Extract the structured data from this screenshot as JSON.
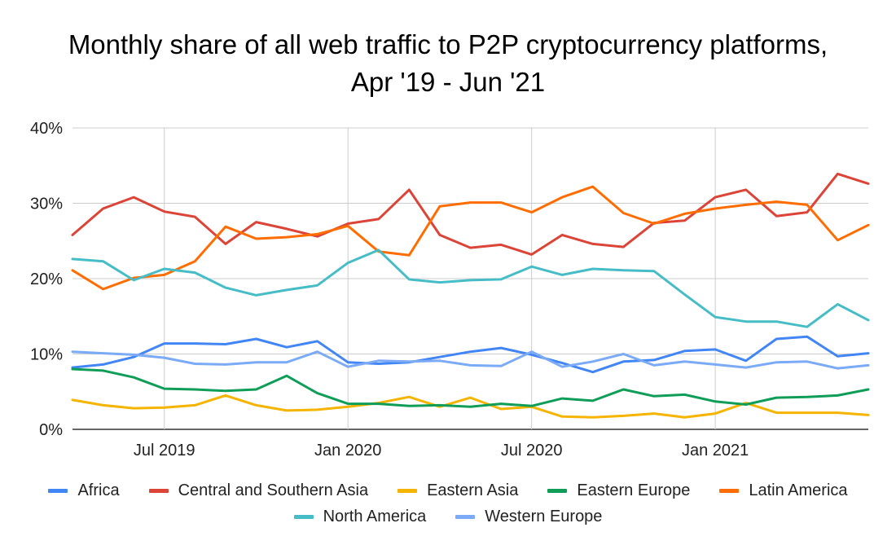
{
  "chart_data": {
    "type": "line",
    "title": "Monthly share of all web traffic to P2P cryptocurrency platforms,",
    "subtitle": "Apr '19 - Jun '21",
    "xlabel": "",
    "ylabel": "",
    "x": [
      "2019-04",
      "2019-05",
      "2019-06",
      "2019-07",
      "2019-08",
      "2019-09",
      "2019-10",
      "2019-11",
      "2019-12",
      "2020-01",
      "2020-02",
      "2020-03",
      "2020-04",
      "2020-05",
      "2020-06",
      "2020-07",
      "2020-08",
      "2020-09",
      "2020-10",
      "2020-11",
      "2020-12",
      "2021-01",
      "2021-02",
      "2021-03",
      "2021-04",
      "2021-05",
      "2021-06"
    ],
    "x_ticks": [
      {
        "x": "2019-07",
        "label": "Jul 2019"
      },
      {
        "x": "2020-01",
        "label": "Jan 2020"
      },
      {
        "x": "2020-07",
        "label": "Jul 2020"
      },
      {
        "x": "2021-01",
        "label": "Jan 2021"
      }
    ],
    "y_ticks": [
      {
        "value": 0,
        "label": "0%"
      },
      {
        "value": 10,
        "label": "10%"
      },
      {
        "value": 20,
        "label": "20%"
      },
      {
        "value": 30,
        "label": "30%"
      },
      {
        "value": 40,
        "label": "40%"
      }
    ],
    "ylim": [
      0,
      40
    ],
    "grid": true,
    "legend_position": "bottom",
    "series": [
      {
        "name": "Africa",
        "color": "#4285F4",
        "values": [
          8.2,
          8.6,
          9.6,
          11.4,
          11.4,
          11.3,
          12.0,
          10.9,
          11.7,
          8.9,
          8.7,
          8.9,
          9.6,
          10.3,
          10.8,
          9.9,
          8.8,
          7.6,
          9.0,
          9.2,
          10.4,
          10.6,
          9.1,
          12.0,
          12.3,
          9.7,
          10.1
        ]
      },
      {
        "name": "Central and Southern Asia",
        "color": "#DB4437",
        "values": [
          25.8,
          29.3,
          30.8,
          28.9,
          28.2,
          24.6,
          27.5,
          26.6,
          25.6,
          27.3,
          27.9,
          31.8,
          25.8,
          24.1,
          24.5,
          23.2,
          25.8,
          24.6,
          24.2,
          27.4,
          27.7,
          30.8,
          31.8,
          28.3,
          28.8,
          33.9,
          32.6
        ]
      },
      {
        "name": "Eastern Asia",
        "color": "#F4B400",
        "values": [
          3.9,
          3.2,
          2.8,
          2.9,
          3.2,
          4.5,
          3.2,
          2.5,
          2.6,
          3.0,
          3.5,
          4.3,
          3.0,
          4.2,
          2.7,
          3.0,
          1.7,
          1.6,
          1.8,
          2.1,
          1.6,
          2.1,
          3.5,
          2.2,
          2.2,
          2.2,
          1.9
        ]
      },
      {
        "name": "Eastern Europe",
        "color": "#0F9D58",
        "values": [
          8.0,
          7.8,
          6.9,
          5.4,
          5.3,
          5.1,
          5.3,
          7.1,
          4.8,
          3.4,
          3.4,
          3.1,
          3.2,
          3.0,
          3.4,
          3.1,
          4.1,
          3.8,
          5.3,
          4.4,
          4.6,
          3.7,
          3.3,
          4.2,
          4.3,
          4.5,
          5.3
        ]
      },
      {
        "name": "Latin America",
        "color": "#FF6D01",
        "values": [
          21.1,
          18.6,
          20.1,
          20.5,
          22.3,
          26.9,
          25.3,
          25.5,
          25.9,
          27.0,
          23.6,
          23.1,
          29.6,
          30.1,
          30.1,
          28.8,
          30.8,
          32.2,
          28.7,
          27.3,
          28.6,
          29.3,
          29.8,
          30.2,
          29.8,
          25.1,
          27.1
        ]
      },
      {
        "name": "North America",
        "color": "#46BDC6",
        "values": [
          22.6,
          22.3,
          19.8,
          21.3,
          20.8,
          18.8,
          17.8,
          18.5,
          19.1,
          22.1,
          23.8,
          19.9,
          19.5,
          19.8,
          19.9,
          21.6,
          20.5,
          21.3,
          21.1,
          21.0,
          17.9,
          14.9,
          14.3,
          14.3,
          13.6,
          16.6,
          14.5
        ]
      },
      {
        "name": "Western Europe",
        "color": "#7BAAF7",
        "values": [
          10.3,
          10.1,
          9.9,
          9.5,
          8.7,
          8.6,
          8.9,
          8.9,
          10.3,
          8.3,
          9.1,
          9.0,
          9.1,
          8.5,
          8.4,
          10.3,
          8.3,
          9.0,
          10.0,
          8.5,
          9.0,
          8.6,
          8.2,
          8.9,
          9.0,
          8.1,
          8.5
        ]
      }
    ]
  }
}
